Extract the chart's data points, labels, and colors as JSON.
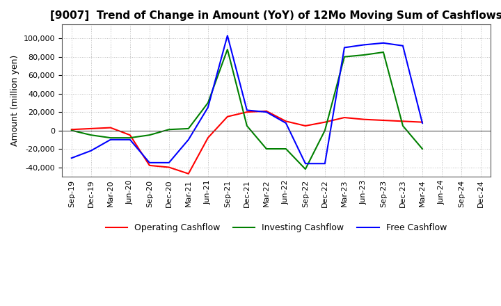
{
  "title": "[9007]  Trend of Change in Amount (YoY) of 12Mo Moving Sum of Cashflows",
  "ylabel": "Amount (million yen)",
  "x_labels": [
    "Sep-19",
    "Dec-19",
    "Mar-20",
    "Jun-20",
    "Sep-20",
    "Dec-20",
    "Mar-21",
    "Jun-21",
    "Sep-21",
    "Dec-21",
    "Mar-22",
    "Jun-22",
    "Sep-22",
    "Dec-22",
    "Mar-23",
    "Jun-23",
    "Sep-23",
    "Dec-23",
    "Mar-24",
    "Jun-24",
    "Sep-24",
    "Dec-24"
  ],
  "operating": [
    1000,
    2000,
    3000,
    -5000,
    -38000,
    -40000,
    -47000,
    -8000,
    15000,
    20000,
    21000,
    10000,
    5000,
    9000,
    14000,
    12000,
    11000,
    10000,
    9000,
    null,
    null,
    null
  ],
  "investing": [
    0,
    -5000,
    -8000,
    -8000,
    -5000,
    1000,
    2000,
    30000,
    88000,
    5000,
    -20000,
    -20000,
    -42000,
    0,
    80000,
    82000,
    85000,
    5000,
    -20000,
    null,
    null,
    null
  ],
  "free": [
    -30000,
    -22000,
    -10000,
    -10000,
    -35000,
    -35000,
    -10000,
    25000,
    103000,
    22000,
    20000,
    8000,
    -36000,
    -36000,
    90000,
    93000,
    95000,
    92000,
    8000,
    null,
    null,
    null
  ],
  "operating_color": "#ff0000",
  "investing_color": "#008000",
  "free_color": "#0000ff",
  "ylim": [
    -50000,
    115000
  ],
  "yticks": [
    -40000,
    -20000,
    0,
    20000,
    40000,
    60000,
    80000,
    100000
  ],
  "background_color": "#ffffff",
  "plot_bg_color": "#ffffff",
  "grid_color": "#bbbbbb",
  "title_fontsize": 11,
  "axis_fontsize": 8,
  "ylabel_fontsize": 9,
  "legend_fontsize": 9
}
